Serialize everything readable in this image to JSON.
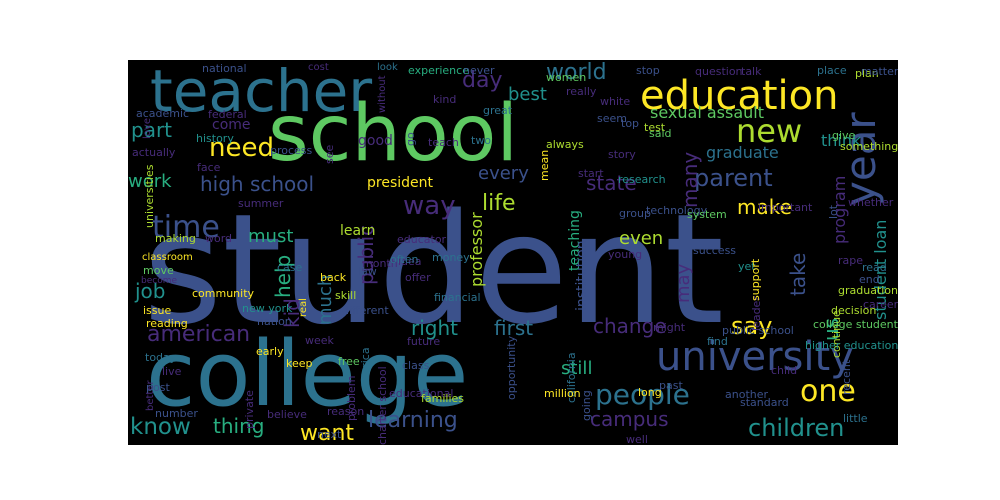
{
  "palette": [
    "#3b518b",
    "#2c728e",
    "#21918d",
    "#28ae80",
    "#5ec962",
    "#addc30",
    "#fde725",
    "#472c7a",
    "#440154"
  ],
  "words": [
    {
      "t": "student",
      "c": "#3b518b"
    },
    {
      "t": "school",
      "c": "#5ec962"
    },
    {
      "t": "college",
      "c": "#2c728e"
    },
    {
      "t": "teacher",
      "c": "#2c728e"
    },
    {
      "t": "education",
      "c": "#fde725"
    },
    {
      "t": "university",
      "c": "#3b518b"
    },
    {
      "t": "year",
      "c": "#3b518b"
    },
    {
      "t": "new",
      "c": "#addc30"
    },
    {
      "t": "time",
      "c": "#3b518b"
    },
    {
      "t": "way",
      "c": "#472c7a"
    },
    {
      "t": "one",
      "c": "#fde725"
    },
    {
      "t": "need",
      "c": "#fde725"
    },
    {
      "t": "people",
      "c": "#2c728e"
    },
    {
      "t": "know",
      "c": "#21918d"
    },
    {
      "t": "world",
      "c": "#2c728e"
    },
    {
      "t": "parent",
      "c": "#3b518b"
    },
    {
      "t": "say",
      "c": "#fde725"
    },
    {
      "t": "children",
      "c": "#21918d"
    },
    {
      "t": "american",
      "c": "#472c7a"
    },
    {
      "t": "learning",
      "c": "#3b518b"
    },
    {
      "t": "high school",
      "c": "#3b518b"
    },
    {
      "t": "life",
      "c": "#addc30"
    },
    {
      "t": "day",
      "c": "#472c7a"
    },
    {
      "t": "part",
      "c": "#21918d"
    },
    {
      "t": "make",
      "c": "#fde725"
    },
    {
      "t": "state",
      "c": "#472c7a"
    },
    {
      "t": "many",
      "c": "#472c7a"
    },
    {
      "t": "take",
      "c": "#3b518b"
    },
    {
      "t": "campus",
      "c": "#472c7a"
    },
    {
      "t": "want",
      "c": "#fde725"
    },
    {
      "t": "thing",
      "c": "#28ae80"
    },
    {
      "t": "right",
      "c": "#21918d"
    },
    {
      "t": "first",
      "c": "#2c728e"
    },
    {
      "t": "change",
      "c": "#472c7a"
    },
    {
      "t": "job",
      "c": "#21918d"
    },
    {
      "t": "work",
      "c": "#28ae80"
    },
    {
      "t": "best",
      "c": "#21918d"
    },
    {
      "t": "must",
      "c": "#28ae80"
    },
    {
      "t": "help",
      "c": "#28ae80"
    },
    {
      "t": "kid",
      "c": "#472c7a"
    },
    {
      "t": "much",
      "c": "#2c728e"
    },
    {
      "t": "public",
      "c": "#472c7a"
    },
    {
      "t": "us",
      "c": "#28ae80"
    },
    {
      "t": "even",
      "c": "#addc30"
    },
    {
      "t": "every",
      "c": "#3b518b"
    },
    {
      "t": "may",
      "c": "#472c7a"
    },
    {
      "t": "still",
      "c": "#28ae80"
    },
    {
      "t": "think",
      "c": "#21918d"
    },
    {
      "t": "sexual assault",
      "c": "#5ec962"
    },
    {
      "t": "graduate",
      "c": "#2c728e"
    },
    {
      "t": "program",
      "c": "#472c7a"
    },
    {
      "t": "student loan",
      "c": "#21918d"
    },
    {
      "t": "professor",
      "c": "#addc30"
    },
    {
      "t": "president",
      "c": "#fde725"
    },
    {
      "t": "good",
      "c": "#472c7a"
    },
    {
      "t": "learn",
      "c": "#addc30"
    },
    {
      "t": "come",
      "c": "#472c7a"
    },
    {
      "t": "teaching",
      "c": "#28ae80"
    },
    {
      "t": "institution",
      "c": "#3b518b"
    },
    {
      "t": "national",
      "c": "#3b518b"
    },
    {
      "t": "cost",
      "c": "#472c7a"
    },
    {
      "t": "look",
      "c": "#2c728e"
    },
    {
      "t": "experience",
      "c": "#28ae80"
    },
    {
      "t": "never",
      "c": "#3b518b"
    },
    {
      "t": "women",
      "c": "#5ec962"
    },
    {
      "t": "stop",
      "c": "#3b518b"
    },
    {
      "t": "question",
      "c": "#472c7a"
    },
    {
      "t": "talk",
      "c": "#472c7a"
    },
    {
      "t": "place",
      "c": "#2c728e"
    },
    {
      "t": "plan",
      "c": "#addc30"
    },
    {
      "t": "matter",
      "c": "#3b518b"
    },
    {
      "t": "without",
      "c": "#472c7a"
    },
    {
      "t": "kind",
      "c": "#472c7a"
    },
    {
      "t": "great",
      "c": "#2c728e"
    },
    {
      "t": "really",
      "c": "#472c7a"
    },
    {
      "t": "white",
      "c": "#472c7a"
    },
    {
      "t": "seem",
      "c": "#3b518b"
    },
    {
      "t": "test",
      "c": "#addc30"
    },
    {
      "t": "give",
      "c": "#5ec962"
    },
    {
      "t": "something",
      "c": "#addc30"
    },
    {
      "t": "federal",
      "c": "#472c7a"
    },
    {
      "t": "academic",
      "c": "#3b518b"
    },
    {
      "t": "history",
      "c": "#21918d"
    },
    {
      "t": "actually",
      "c": "#472c7a"
    },
    {
      "t": "love",
      "c": "#472c7a"
    },
    {
      "t": "universities",
      "c": "#addc30"
    },
    {
      "t": "face",
      "c": "#472c7a"
    },
    {
      "t": "process",
      "c": "#3b518b"
    },
    {
      "t": "see",
      "c": "#472c7a"
    },
    {
      "t": "teach",
      "c": "#472c7a"
    },
    {
      "t": "go",
      "c": "#3b518b"
    },
    {
      "t": "two",
      "c": "#2c728e"
    },
    {
      "t": "mean",
      "c": "#fde725"
    },
    {
      "t": "always",
      "c": "#addc30"
    },
    {
      "t": "said",
      "c": "#5ec962"
    },
    {
      "t": "story",
      "c": "#472c7a"
    },
    {
      "t": "top",
      "c": "#3b518b"
    },
    {
      "t": "start",
      "c": "#472c7a"
    },
    {
      "t": "research",
      "c": "#21918d"
    },
    {
      "t": "technology",
      "c": "#3b518b"
    },
    {
      "t": "lot",
      "c": "#3b518b"
    },
    {
      "t": "whether",
      "c": "#472c7a"
    },
    {
      "t": "summer",
      "c": "#472c7a"
    },
    {
      "t": "month",
      "c": "#472c7a"
    },
    {
      "t": "money",
      "c": "#2c728e"
    },
    {
      "t": "group",
      "c": "#3b518b"
    },
    {
      "t": "system",
      "c": "#5ec962"
    },
    {
      "t": "important",
      "c": "#472c7a"
    },
    {
      "t": "educator",
      "c": "#472c7a"
    },
    {
      "t": "making",
      "c": "#addc30"
    },
    {
      "t": "word",
      "c": "#472c7a"
    },
    {
      "t": "classroom",
      "c": "#fde725"
    },
    {
      "t": "move",
      "c": "#5ec962"
    },
    {
      "t": "case",
      "c": "#2c728e"
    },
    {
      "t": "law",
      "c": "#3b518b"
    },
    {
      "t": "idea",
      "c": "#472c7a"
    },
    {
      "t": "young",
      "c": "#472c7a"
    },
    {
      "t": "yet",
      "c": "#21918d"
    },
    {
      "t": "rape",
      "c": "#472c7a"
    },
    {
      "t": "read",
      "c": "#2c728e"
    },
    {
      "t": "end",
      "c": "#3b518b"
    },
    {
      "t": "graduation",
      "c": "#addc30"
    },
    {
      "t": "career",
      "c": "#472c7a"
    },
    {
      "t": "become",
      "c": "#472c7a"
    },
    {
      "t": "community",
      "c": "#fde725"
    },
    {
      "t": "issue",
      "c": "#fde725"
    },
    {
      "t": "real",
      "c": "#fde725"
    },
    {
      "t": "back",
      "c": "#fde725"
    },
    {
      "t": "often",
      "c": "#2c728e"
    },
    {
      "t": "skill",
      "c": "#addc30"
    },
    {
      "t": "different",
      "c": "#3b518b"
    },
    {
      "t": "offer",
      "c": "#472c7a"
    },
    {
      "t": "financial",
      "c": "#2c728e"
    },
    {
      "t": "opportunity",
      "c": "#3b518b"
    },
    {
      "t": "california",
      "c": "#2c728e"
    },
    {
      "t": "success",
      "c": "#3b518b"
    },
    {
      "t": "leader",
      "c": "#472c7a"
    },
    {
      "t": "support",
      "c": "#fde725"
    },
    {
      "t": "continue",
      "c": "#addc30"
    },
    {
      "t": "decision",
      "c": "#addc30"
    },
    {
      "t": "reading",
      "c": "#fde725"
    },
    {
      "t": "nation",
      "c": "#3b518b"
    },
    {
      "t": "new york",
      "c": "#21918d"
    },
    {
      "t": "week",
      "c": "#472c7a"
    },
    {
      "t": "might",
      "c": "#472c7a"
    },
    {
      "t": "college student",
      "c": "#5ec962"
    },
    {
      "t": "find",
      "c": "#2c728e"
    },
    {
      "t": "higher education",
      "c": "#21918d"
    },
    {
      "t": "public school",
      "c": "#3b518b"
    },
    {
      "t": "recent",
      "c": "#3b518b"
    },
    {
      "t": "better",
      "c": "#472c7a"
    },
    {
      "t": "today",
      "c": "#2c728e"
    },
    {
      "t": "early",
      "c": "#fde725"
    },
    {
      "t": "keep",
      "c": "#fde725"
    },
    {
      "t": "future",
      "c": "#472c7a"
    },
    {
      "t": "class",
      "c": "#3b518b"
    },
    {
      "t": "live",
      "c": "#472c7a"
    },
    {
      "t": "post",
      "c": "#3b518b"
    },
    {
      "t": "private",
      "c": "#472c7a"
    },
    {
      "t": "problem",
      "c": "#472c7a"
    },
    {
      "t": "america",
      "c": "#2c728e"
    },
    {
      "t": "free",
      "c": "#5ec962"
    },
    {
      "t": "charter school",
      "c": "#472c7a"
    },
    {
      "t": "past",
      "c": "#3b518b"
    },
    {
      "t": "long",
      "c": "#fde725"
    },
    {
      "t": "child",
      "c": "#472c7a"
    },
    {
      "t": "educational",
      "c": "#472c7a"
    },
    {
      "t": "families",
      "c": "#addc30"
    },
    {
      "t": "million",
      "c": "#fde725"
    },
    {
      "t": "going",
      "c": "#3b518b"
    },
    {
      "t": "number",
      "c": "#3b518b"
    },
    {
      "t": "believe",
      "c": "#472c7a"
    },
    {
      "t": "reason",
      "c": "#472c7a"
    },
    {
      "t": "another",
      "c": "#3b518b"
    },
    {
      "t": "standard",
      "c": "#3b518b"
    },
    {
      "t": "little",
      "c": "#2c728e"
    },
    {
      "t": "next",
      "c": "#3b518b"
    },
    {
      "t": "well",
      "c": "#472c7a"
    }
  ]
}
